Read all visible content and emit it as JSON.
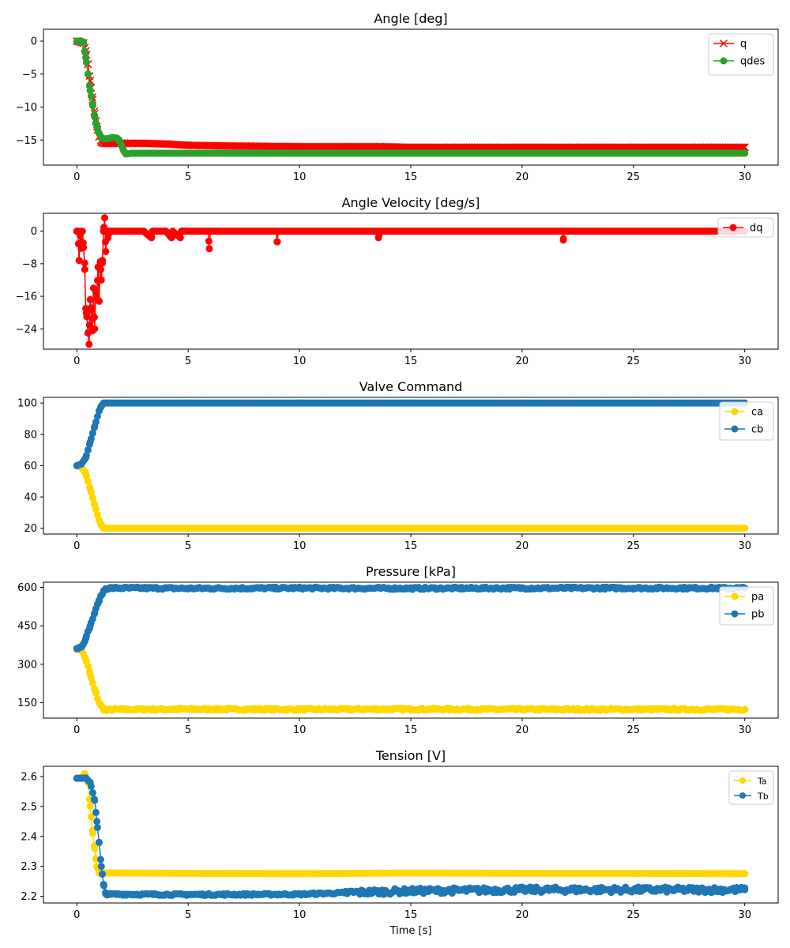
{
  "chart_data": [
    {
      "type": "line",
      "title": "Angle [deg]",
      "xlim": [
        -1.5,
        31.5
      ],
      "ylim": [
        -18.8,
        1.8
      ],
      "xticks": [
        "0",
        "5",
        "10",
        "15",
        "20",
        "25",
        "30"
      ],
      "xtick_values": [
        0,
        5,
        10,
        15,
        20,
        25,
        30
      ],
      "yticks": [
        "0",
        "−5",
        "−10",
        "−15"
      ],
      "ytick_values": [
        0,
        -5,
        -10,
        -15
      ],
      "legend": "top-right",
      "series": [
        {
          "name": "q",
          "color": "#ff0000",
          "marker": "x",
          "x": [
            0,
            0.3,
            0.4,
            0.5,
            0.6,
            0.7,
            0.8,
            0.9,
            1.0,
            1.1,
            1.2,
            1.3,
            1.4,
            1.6,
            2.0,
            2.5,
            3.0,
            4.0,
            5.0,
            7.0,
            10.0,
            13.6,
            15.0,
            20.0,
            25.0,
            30.0
          ],
          "y": [
            0,
            -0.3,
            -1.5,
            -3.5,
            -6.0,
            -8.5,
            -11.0,
            -13.0,
            -14.5,
            -15.3,
            -15.5,
            -15.5,
            -15.5,
            -15.5,
            -15.5,
            -15.5,
            -15.5,
            -15.6,
            -15.8,
            -15.9,
            -16.0,
            -16.0,
            -16.1,
            -16.1,
            -16.1,
            -16.1
          ]
        },
        {
          "name": "qdes",
          "color": "#2ca02c",
          "marker": "o",
          "x": [
            0,
            0.2,
            0.3,
            0.4,
            0.5,
            0.6,
            0.7,
            0.8,
            0.9,
            1.0,
            1.1,
            1.2,
            1.4,
            1.6,
            1.8,
            1.9,
            2.0,
            2.1,
            2.2,
            2.5,
            3.0,
            5.0,
            10.0,
            15.0,
            20.0,
            25.0,
            30.0
          ],
          "y": [
            0,
            0,
            -0.3,
            -2.5,
            -5.0,
            -7.5,
            -9.5,
            -11.5,
            -13.0,
            -14.0,
            -14.6,
            -14.8,
            -14.8,
            -14.6,
            -14.7,
            -15.0,
            -15.8,
            -16.6,
            -17.1,
            -17.0,
            -17.0,
            -17.0,
            -17.0,
            -17.0,
            -17.0,
            -17.0,
            -17.0
          ]
        }
      ]
    },
    {
      "type": "line",
      "title": "Angle Velocity [deg/s]",
      "xlim": [
        -1.5,
        31.5
      ],
      "ylim": [
        -29,
        4.4
      ],
      "xticks": [
        "0",
        "5",
        "10",
        "15",
        "20",
        "25",
        "30"
      ],
      "xtick_values": [
        0,
        5,
        10,
        15,
        20,
        25,
        30
      ],
      "yticks": [
        "0",
        "−8",
        "−16",
        "−24"
      ],
      "ytick_values": [
        0,
        -8,
        -16,
        -24
      ],
      "legend": "top-right",
      "series": [
        {
          "name": "dq",
          "color": "#ff0000",
          "marker": "o",
          "x": [
            0,
            0.05,
            0.1,
            0.15,
            0.2,
            0.25,
            0.3,
            0.35,
            0.4,
            0.45,
            0.5,
            0.55,
            0.6,
            0.65,
            0.7,
            0.75,
            0.8,
            0.85,
            0.9,
            0.95,
            1.0,
            1.05,
            1.1,
            1.15,
            1.2,
            1.25,
            1.3,
            1.35,
            1.4,
            1.45,
            1.5,
            2.0,
            3.0,
            3.35,
            3.4,
            4.0,
            4.25,
            4.3,
            4.65,
            4.7,
            5.9,
            5.95,
            6.0,
            8.95,
            9.0,
            9.05,
            13.5,
            13.55,
            13.6,
            21.8,
            21.85,
            21.9,
            25.0,
            30.0
          ],
          "y": [
            0,
            0,
            -7.2,
            0,
            -4.2,
            0,
            -4.0,
            -7.8,
            -19.0,
            -21.0,
            -25.0,
            -27.8,
            -16.8,
            -19.2,
            -24.5,
            -14.0,
            -24.0,
            -14.8,
            -16.5,
            -8.8,
            -17.2,
            -7.5,
            -12.0,
            -7.2,
            0,
            3.3,
            -5.0,
            0,
            -1.6,
            0,
            0,
            0,
            0,
            -1.6,
            0,
            0,
            -1.6,
            0,
            -1.6,
            0,
            0,
            -4.3,
            0,
            0,
            -2.6,
            0,
            0,
            -1.6,
            0,
            0,
            -2.2,
            0,
            0,
            0
          ]
        }
      ]
    },
    {
      "type": "line",
      "title": "Valve Command",
      "xlim": [
        -1.5,
        31.5
      ],
      "ylim": [
        16.3,
        103.6
      ],
      "xticks": [
        "0",
        "5",
        "10",
        "15",
        "20",
        "25",
        "30"
      ],
      "xtick_values": [
        0,
        5,
        10,
        15,
        20,
        25,
        30
      ],
      "yticks": [
        "20",
        "40",
        "60",
        "80",
        "100"
      ],
      "ytick_values": [
        20,
        40,
        60,
        80,
        100
      ],
      "legend": "top-right",
      "series": [
        {
          "name": "ca",
          "color": "#ffd700",
          "marker": "o",
          "x": [
            0,
            0.2,
            0.4,
            0.6,
            0.8,
            1.0,
            1.1,
            1.2,
            1.3,
            1.5,
            2.0,
            5.0,
            10.0,
            15.0,
            20.0,
            25.0,
            30.0
          ],
          "y": [
            60,
            59,
            55,
            45,
            35,
            25,
            22,
            20,
            20,
            20,
            20,
            20,
            20,
            20,
            20,
            20,
            20
          ]
        },
        {
          "name": "cb",
          "color": "#1f77b4",
          "marker": "o",
          "x": [
            0,
            0.2,
            0.4,
            0.6,
            0.8,
            1.0,
            1.1,
            1.2,
            1.3,
            1.5,
            2.0,
            5.0,
            10.0,
            15.0,
            20.0,
            25.0,
            30.0
          ],
          "y": [
            60,
            61,
            65,
            75,
            85,
            95,
            98,
            100,
            100,
            100,
            100,
            100,
            100,
            100,
            100,
            100,
            100
          ]
        }
      ]
    },
    {
      "type": "line",
      "title": "Pressure [kPa]",
      "xlim": [
        -1.5,
        31.5
      ],
      "ylim": [
        90,
        620
      ],
      "xticks": [
        "0",
        "5",
        "10",
        "15",
        "20",
        "25",
        "30"
      ],
      "xtick_values": [
        0,
        5,
        10,
        15,
        20,
        25,
        30
      ],
      "yticks": [
        "150",
        "300",
        "450",
        "600"
      ],
      "ytick_values": [
        150,
        300,
        450,
        600
      ],
      "legend": "top-right",
      "series": [
        {
          "name": "pa",
          "color": "#ffd700",
          "marker": "o",
          "x": [
            0,
            0.2,
            0.4,
            0.6,
            0.8,
            1.0,
            1.2,
            1.3,
            1.5,
            2.0,
            3.0,
            5.0,
            10.0,
            15.0,
            20.0,
            25.0,
            30.0
          ],
          "y": [
            362,
            355,
            320,
            260,
            200,
            150,
            125,
            120,
            123,
            124,
            124,
            125,
            124,
            125,
            124,
            124,
            124
          ]
        },
        {
          "name": "pb",
          "color": "#1f77b4",
          "marker": "o",
          "x": [
            0,
            0.2,
            0.4,
            0.6,
            0.8,
            1.0,
            1.2,
            1.3,
            1.5,
            2.0,
            3.0,
            5.0,
            10.0,
            15.0,
            20.0,
            25.0,
            30.0
          ],
          "y": [
            362,
            368,
            400,
            450,
            500,
            550,
            585,
            595,
            597,
            597,
            597,
            596,
            597,
            596,
            597,
            597,
            597
          ]
        }
      ]
    },
    {
      "type": "line",
      "title": "Tension [V]",
      "xlabel": "Time [s]",
      "xlim": [
        -1.5,
        31.5
      ],
      "ylim": [
        2.178,
        2.634
      ],
      "xticks": [
        "0",
        "5",
        "10",
        "15",
        "20",
        "25",
        "30"
      ],
      "xtick_values": [
        0,
        5,
        10,
        15,
        20,
        25,
        30
      ],
      "yticks": [
        "2.2",
        "2.3",
        "2.4",
        "2.5",
        "2.6"
      ],
      "ytick_values": [
        2.2,
        2.3,
        2.4,
        2.5,
        2.6
      ],
      "legend": "top-right",
      "series": [
        {
          "name": "Ta",
          "color": "#ffd700",
          "marker": "o",
          "x": [
            0,
            0.2,
            0.35,
            0.4,
            0.5,
            0.6,
            0.7,
            0.8,
            0.9,
            1.0,
            1.5,
            2.0,
            5.0,
            10.0,
            15.0,
            20.0,
            25.0,
            30.0
          ],
          "y": [
            2.594,
            2.594,
            2.61,
            2.6,
            2.58,
            2.5,
            2.42,
            2.36,
            2.3,
            2.278,
            2.278,
            2.278,
            2.277,
            2.276,
            2.278,
            2.277,
            2.277,
            2.276
          ]
        },
        {
          "name": "Tb",
          "color": "#1f77b4",
          "marker": "o",
          "x": [
            0,
            0.2,
            0.4,
            0.6,
            0.8,
            0.9,
            1.0,
            1.1,
            1.2,
            1.3,
            1.5,
            2.0,
            5.0,
            10.0,
            12.0,
            15.0,
            20.0,
            25.0,
            30.0
          ],
          "y": [
            2.594,
            2.594,
            2.595,
            2.58,
            2.52,
            2.45,
            2.38,
            2.3,
            2.24,
            2.208,
            2.207,
            2.207,
            2.206,
            2.207,
            2.212,
            2.218,
            2.222,
            2.222,
            2.222
          ]
        }
      ]
    }
  ]
}
